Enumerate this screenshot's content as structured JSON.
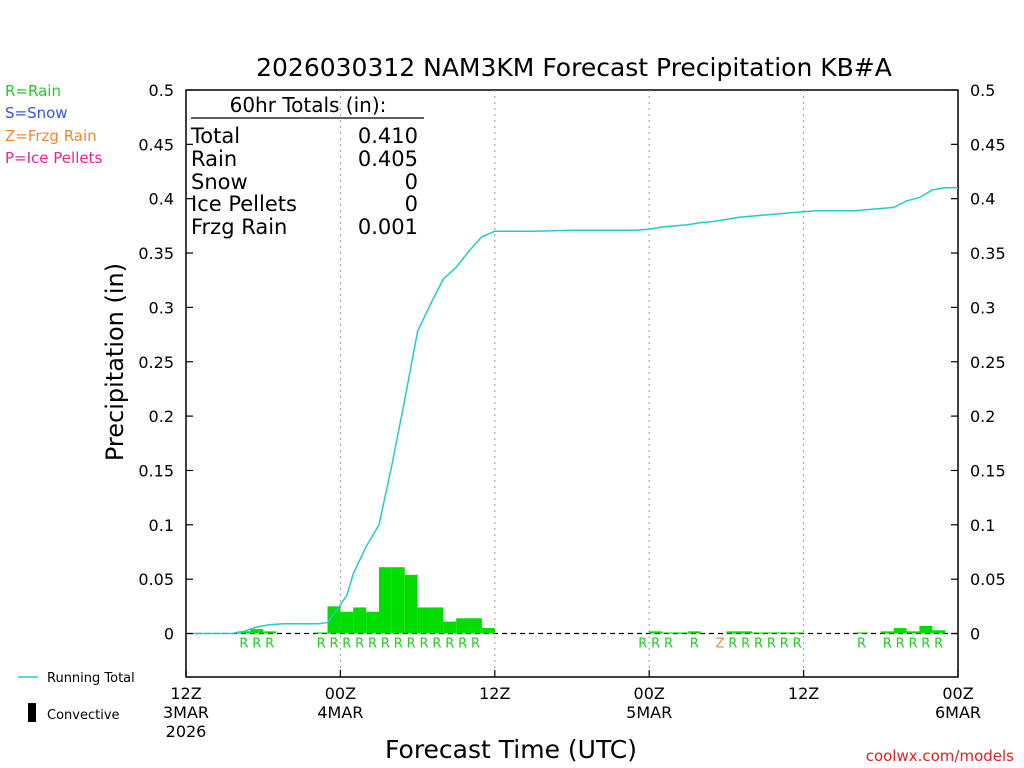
{
  "chart_data": {
    "type": "bar",
    "title": "2026030312 NAM3KM Forecast Precipitation KB#A",
    "xlabel": "Forecast Time (UTC)",
    "ylabel": "Precipitation (in)",
    "ylim": [
      -0.04,
      0.5
    ],
    "yticks": [
      "0.5",
      "0.45",
      "0.4",
      "0.35",
      "0.3",
      "0.25",
      "0.2",
      "0.15",
      "0.1",
      "0.05",
      "0"
    ],
    "xlim_hours": [
      0,
      60
    ],
    "xticks": [
      {
        "hour": 0,
        "lines": [
          "12Z",
          "3MAR",
          "2026"
        ]
      },
      {
        "hour": 12,
        "lines": [
          "00Z",
          "4MAR"
        ]
      },
      {
        "hour": 24,
        "lines": [
          "12Z"
        ]
      },
      {
        "hour": 36,
        "lines": [
          "00Z",
          "5MAR"
        ]
      },
      {
        "hour": 48,
        "lines": [
          "12Z"
        ]
      },
      {
        "hour": 60,
        "lines": [
          "00Z",
          "6MAR"
        ]
      }
    ],
    "gridlines_hours": [
      12,
      24,
      36,
      48
    ],
    "totals_box": {
      "header": "60hr Totals (in):",
      "rows": [
        {
          "label": "Total",
          "value": "0.410"
        },
        {
          "label": "Rain",
          "value": "0.405"
        },
        {
          "label": "Snow",
          "value": "0"
        },
        {
          "label": "Ice Pellets",
          "value": "0"
        },
        {
          "label": "Frzg Rain",
          "value": "0.001"
        }
      ]
    },
    "type_legend": [
      {
        "text": "R=Rain",
        "color": "#22cc22"
      },
      {
        "text": "S=Snow",
        "color": "#3355dd"
      },
      {
        "text": "Z=Frzg Rain",
        "color": "#ee8833"
      },
      {
        "text": "P=Ice Pellets",
        "color": "#ee2299"
      }
    ],
    "series_legend": {
      "running_total": "Running Total",
      "convective": "Convective"
    },
    "footer": "coolwx.com/models",
    "bar_color": "#00dd00",
    "line_color": "#22cccc",
    "bars": [
      {
        "hour": 5,
        "value": 0.002
      },
      {
        "hour": 6,
        "value": 0.004
      },
      {
        "hour": 7,
        "value": 0.002
      },
      {
        "hour": 11,
        "value": 0.001
      },
      {
        "hour": 12,
        "value": 0.025
      },
      {
        "hour": 13,
        "value": 0.02
      },
      {
        "hour": 14,
        "value": 0.024
      },
      {
        "hour": 15,
        "value": 0.02
      },
      {
        "hour": 16,
        "value": 0.061
      },
      {
        "hour": 17,
        "value": 0.061
      },
      {
        "hour": 18,
        "value": 0.054
      },
      {
        "hour": 19,
        "value": 0.024
      },
      {
        "hour": 20,
        "value": 0.024
      },
      {
        "hour": 21,
        "value": 0.011
      },
      {
        "hour": 22,
        "value": 0.014
      },
      {
        "hour": 23,
        "value": 0.014
      },
      {
        "hour": 24,
        "value": 0.005
      },
      {
        "hour": 37,
        "value": 0.002
      },
      {
        "hour": 38,
        "value": 0.001
      },
      {
        "hour": 39,
        "value": 0.001
      },
      {
        "hour": 40,
        "value": 0.002
      },
      {
        "hour": 43,
        "value": 0.002
      },
      {
        "hour": 44,
        "value": 0.002
      },
      {
        "hour": 45,
        "value": 0.001
      },
      {
        "hour": 46,
        "value": 0.001
      },
      {
        "hour": 47,
        "value": 0.001
      },
      {
        "hour": 48,
        "value": 0.001
      },
      {
        "hour": 53,
        "value": 0.001
      },
      {
        "hour": 55,
        "value": 0.002
      },
      {
        "hour": 56,
        "value": 0.005
      },
      {
        "hour": 57,
        "value": 0.002
      },
      {
        "hour": 58,
        "value": 0.007
      },
      {
        "hour": 59,
        "value": 0.003
      }
    ],
    "running_total": {
      "hours": [
        0,
        3.6,
        4.5,
        5.5,
        6.5,
        7.5,
        8.5,
        9.5,
        10.3,
        11,
        11.6,
        12.5,
        13,
        14,
        15,
        16,
        17,
        18,
        19,
        20,
        21,
        22,
        23,
        24,
        27,
        30,
        33,
        35,
        36,
        37,
        38,
        39,
        40,
        41,
        42,
        43,
        44,
        45,
        46,
        47,
        48,
        49,
        50,
        51,
        52,
        53,
        54,
        55,
        56,
        57,
        58,
        59,
        60
      ],
      "values": [
        0,
        0,
        0.002,
        0.006,
        0.008,
        0.009,
        0.009,
        0.009,
        0.009,
        0.01,
        0.02,
        0.035,
        0.055,
        0.08,
        0.1,
        0.155,
        0.215,
        0.278,
        0.303,
        0.326,
        0.337,
        0.352,
        0.365,
        0.37,
        0.37,
        0.371,
        0.371,
        0.371,
        0.372,
        0.374,
        0.375,
        0.376,
        0.378,
        0.379,
        0.381,
        0.383,
        0.384,
        0.385,
        0.386,
        0.387,
        0.388,
        0.389,
        0.389,
        0.389,
        0.389,
        0.39,
        0.391,
        0.392,
        0.398,
        0.401,
        0.408,
        0.41,
        0.41
      ]
    },
    "type_marks": [
      {
        "hour": 5,
        "code": "R"
      },
      {
        "hour": 6,
        "code": "R"
      },
      {
        "hour": 7,
        "code": "R"
      },
      {
        "hour": 11,
        "code": "R"
      },
      {
        "hour": 12,
        "code": "R"
      },
      {
        "hour": 13,
        "code": "R"
      },
      {
        "hour": 14,
        "code": "R"
      },
      {
        "hour": 15,
        "code": "R"
      },
      {
        "hour": 16,
        "code": "R"
      },
      {
        "hour": 17,
        "code": "R"
      },
      {
        "hour": 18,
        "code": "R"
      },
      {
        "hour": 19,
        "code": "R"
      },
      {
        "hour": 20,
        "code": "R"
      },
      {
        "hour": 21,
        "code": "R"
      },
      {
        "hour": 22,
        "code": "R"
      },
      {
        "hour": 23,
        "code": "R"
      },
      {
        "hour": 36,
        "code": "R"
      },
      {
        "hour": 37,
        "code": "R"
      },
      {
        "hour": 38,
        "code": "R"
      },
      {
        "hour": 40,
        "code": "R"
      },
      {
        "hour": 42,
        "code": "Z"
      },
      {
        "hour": 43,
        "code": "R"
      },
      {
        "hour": 44,
        "code": "R"
      },
      {
        "hour": 45,
        "code": "R"
      },
      {
        "hour": 46,
        "code": "R"
      },
      {
        "hour": 47,
        "code": "R"
      },
      {
        "hour": 48,
        "code": "R"
      },
      {
        "hour": 53,
        "code": "R"
      },
      {
        "hour": 55,
        "code": "R"
      },
      {
        "hour": 56,
        "code": "R"
      },
      {
        "hour": 57,
        "code": "R"
      },
      {
        "hour": 58,
        "code": "R"
      },
      {
        "hour": 59,
        "code": "R"
      }
    ]
  }
}
